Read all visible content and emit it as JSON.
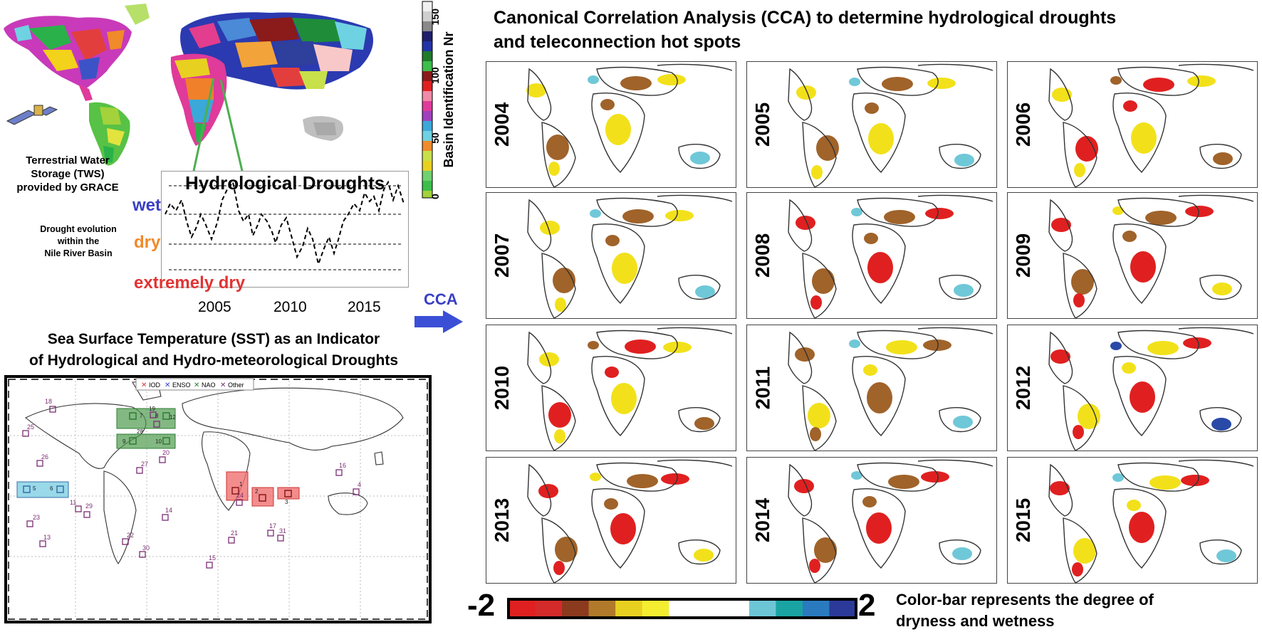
{
  "left_top": {
    "tws_label": [
      "Terrestrial Water",
      "Storage (TWS)",
      "provided by GRACE"
    ],
    "nile_label": [
      "Drought evolution",
      "within the",
      "Nile River Basin"
    ],
    "ts_title": "Hydrological Droughts",
    "levels": {
      "wet": "wet",
      "dry": "dry",
      "extremely_dry": "extremely dry"
    },
    "x_ticks": [
      "2005",
      "2010",
      "2015"
    ],
    "basin_colorbar": {
      "label": "Basin Identification Nr",
      "ticks": [
        "0",
        "50",
        "100",
        "150"
      ]
    }
  },
  "cca_arrow_label": "CCA",
  "sst": {
    "title": [
      "Sea Surface Temperature (SST) as an Indicator",
      "of Hydrological and Hydro-meteorological Droughts"
    ],
    "legend": [
      {
        "label": "IOD",
        "color": "#e23333"
      },
      {
        "label": "ENSO",
        "color": "#3a3fc4"
      },
      {
        "label": "NAO",
        "color": "#2e7d32"
      },
      {
        "label": "Other",
        "color": "#7b2d73"
      }
    ],
    "numbers": [
      "18",
      "25",
      "26",
      "23",
      "13",
      "11",
      "29",
      "22",
      "30",
      "27",
      "20",
      "14",
      "15",
      "21",
      "24",
      "17",
      "31",
      "16",
      "4",
      "1",
      "2",
      "3",
      "5",
      "6",
      "7",
      "8",
      "9",
      "10",
      "12",
      "19",
      "28"
    ]
  },
  "cca": {
    "title": [
      "Canonical Correlation Analysis (CCA) to determine hydrological droughts",
      "and teleconnection hot spots"
    ],
    "years": [
      "2004",
      "2005",
      "2006",
      "2007",
      "2008",
      "2009",
      "2010",
      "2011",
      "2012",
      "2013",
      "2014",
      "2015"
    ],
    "colorbar": {
      "min": "-2",
      "max": "2",
      "caption": [
        "Color-bar represents the degree of",
        "dryness and wetness"
      ],
      "colors": [
        "#e02020",
        "#d42a2a",
        "#8b3a1e",
        "#b07a2a",
        "#e8d020",
        "#f5ee30",
        "#ffffff",
        "#ffffff",
        "#ffffff",
        "#6cc6d6",
        "#1aa3a3",
        "#2a7abf",
        "#2b3a99"
      ]
    }
  },
  "colors": {
    "dry_red": "#e02020",
    "brown": "#a0632a",
    "yellow": "#f2e11a",
    "cyan": "#6fc8d8",
    "blue": "#2a4aa8",
    "nao_green": "#4f9a4f",
    "enso_cyan": "#7fd0e4",
    "iod_red": "#f07070"
  }
}
